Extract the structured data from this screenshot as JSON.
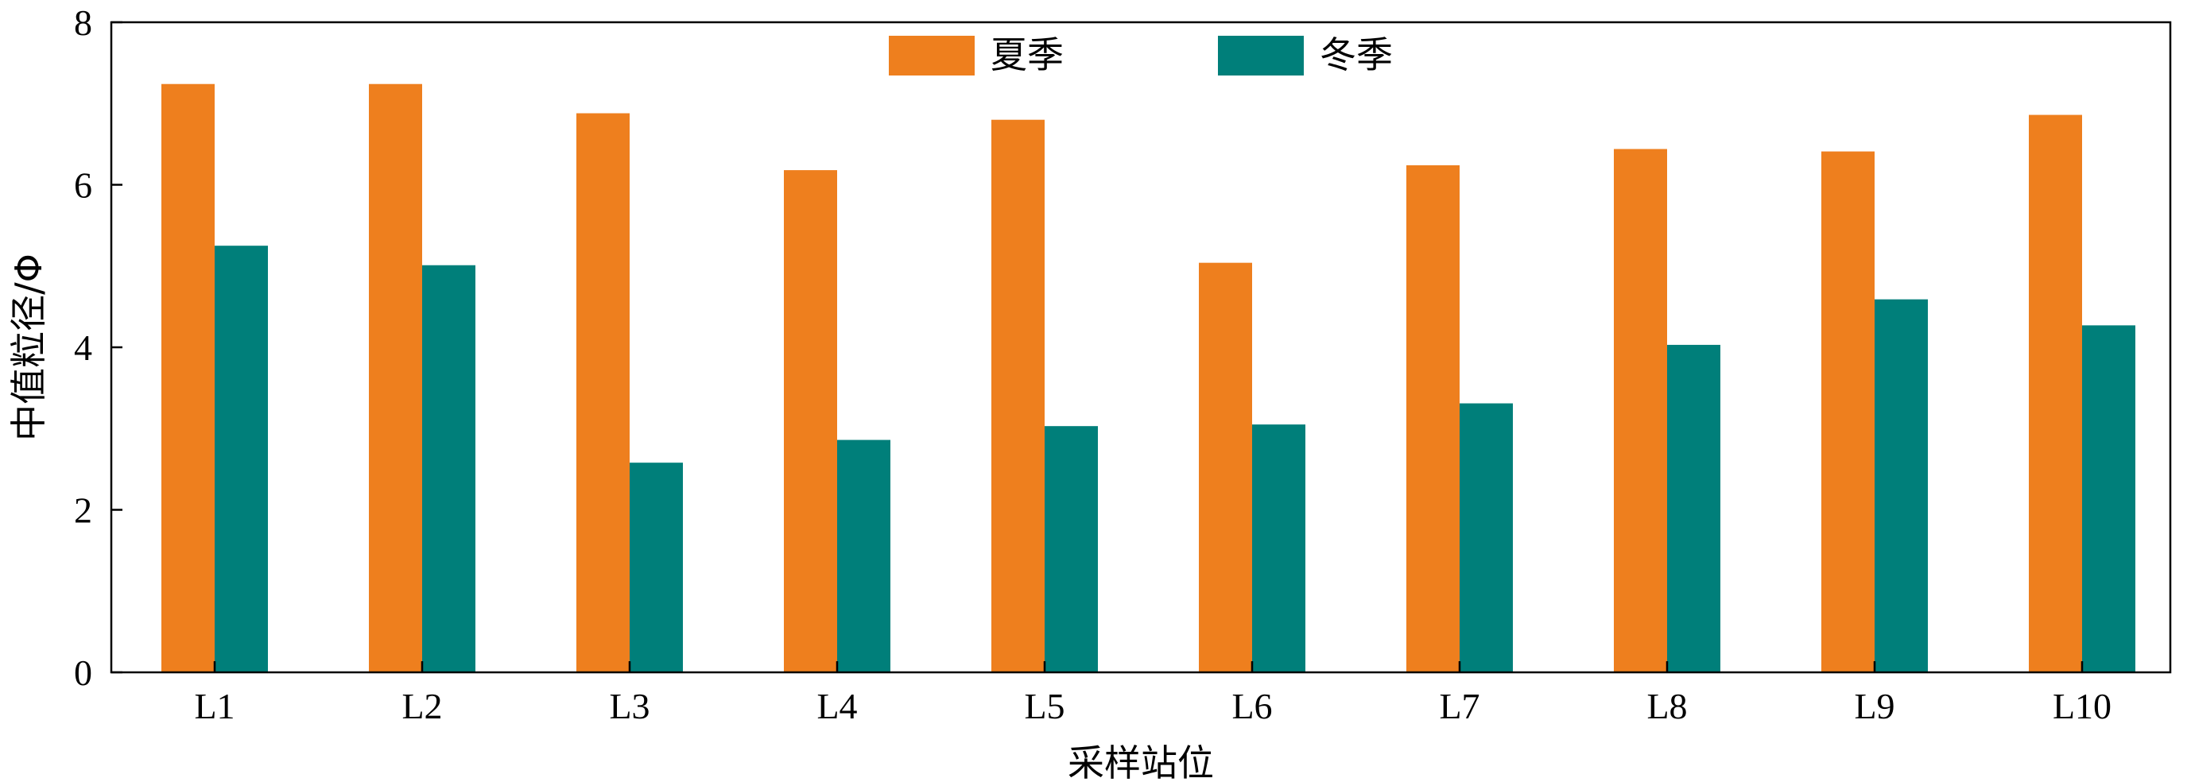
{
  "chart_data": {
    "type": "bar",
    "categories": [
      "L1",
      "L2",
      "L3",
      "L4",
      "L5",
      "L6",
      "L7",
      "L8",
      "L9",
      "L10"
    ],
    "series": [
      {
        "name": "夏季",
        "color": "#EE7F1E",
        "values": [
          7.24,
          7.24,
          6.88,
          6.18,
          6.8,
          5.04,
          6.24,
          6.44,
          6.41,
          6.86
        ]
      },
      {
        "name": "冬季",
        "color": "#007F7A",
        "values": [
          5.25,
          5.01,
          2.58,
          2.86,
          3.03,
          3.05,
          3.31,
          4.03,
          4.59,
          4.27
        ]
      }
    ],
    "xlabel": "采样站位",
    "ylabel": "中值粒径/Φ",
    "ylim": [
      0,
      8
    ],
    "yticks": [
      0,
      2,
      4,
      6,
      8
    ],
    "legend_position": "top-center",
    "grid": false
  }
}
